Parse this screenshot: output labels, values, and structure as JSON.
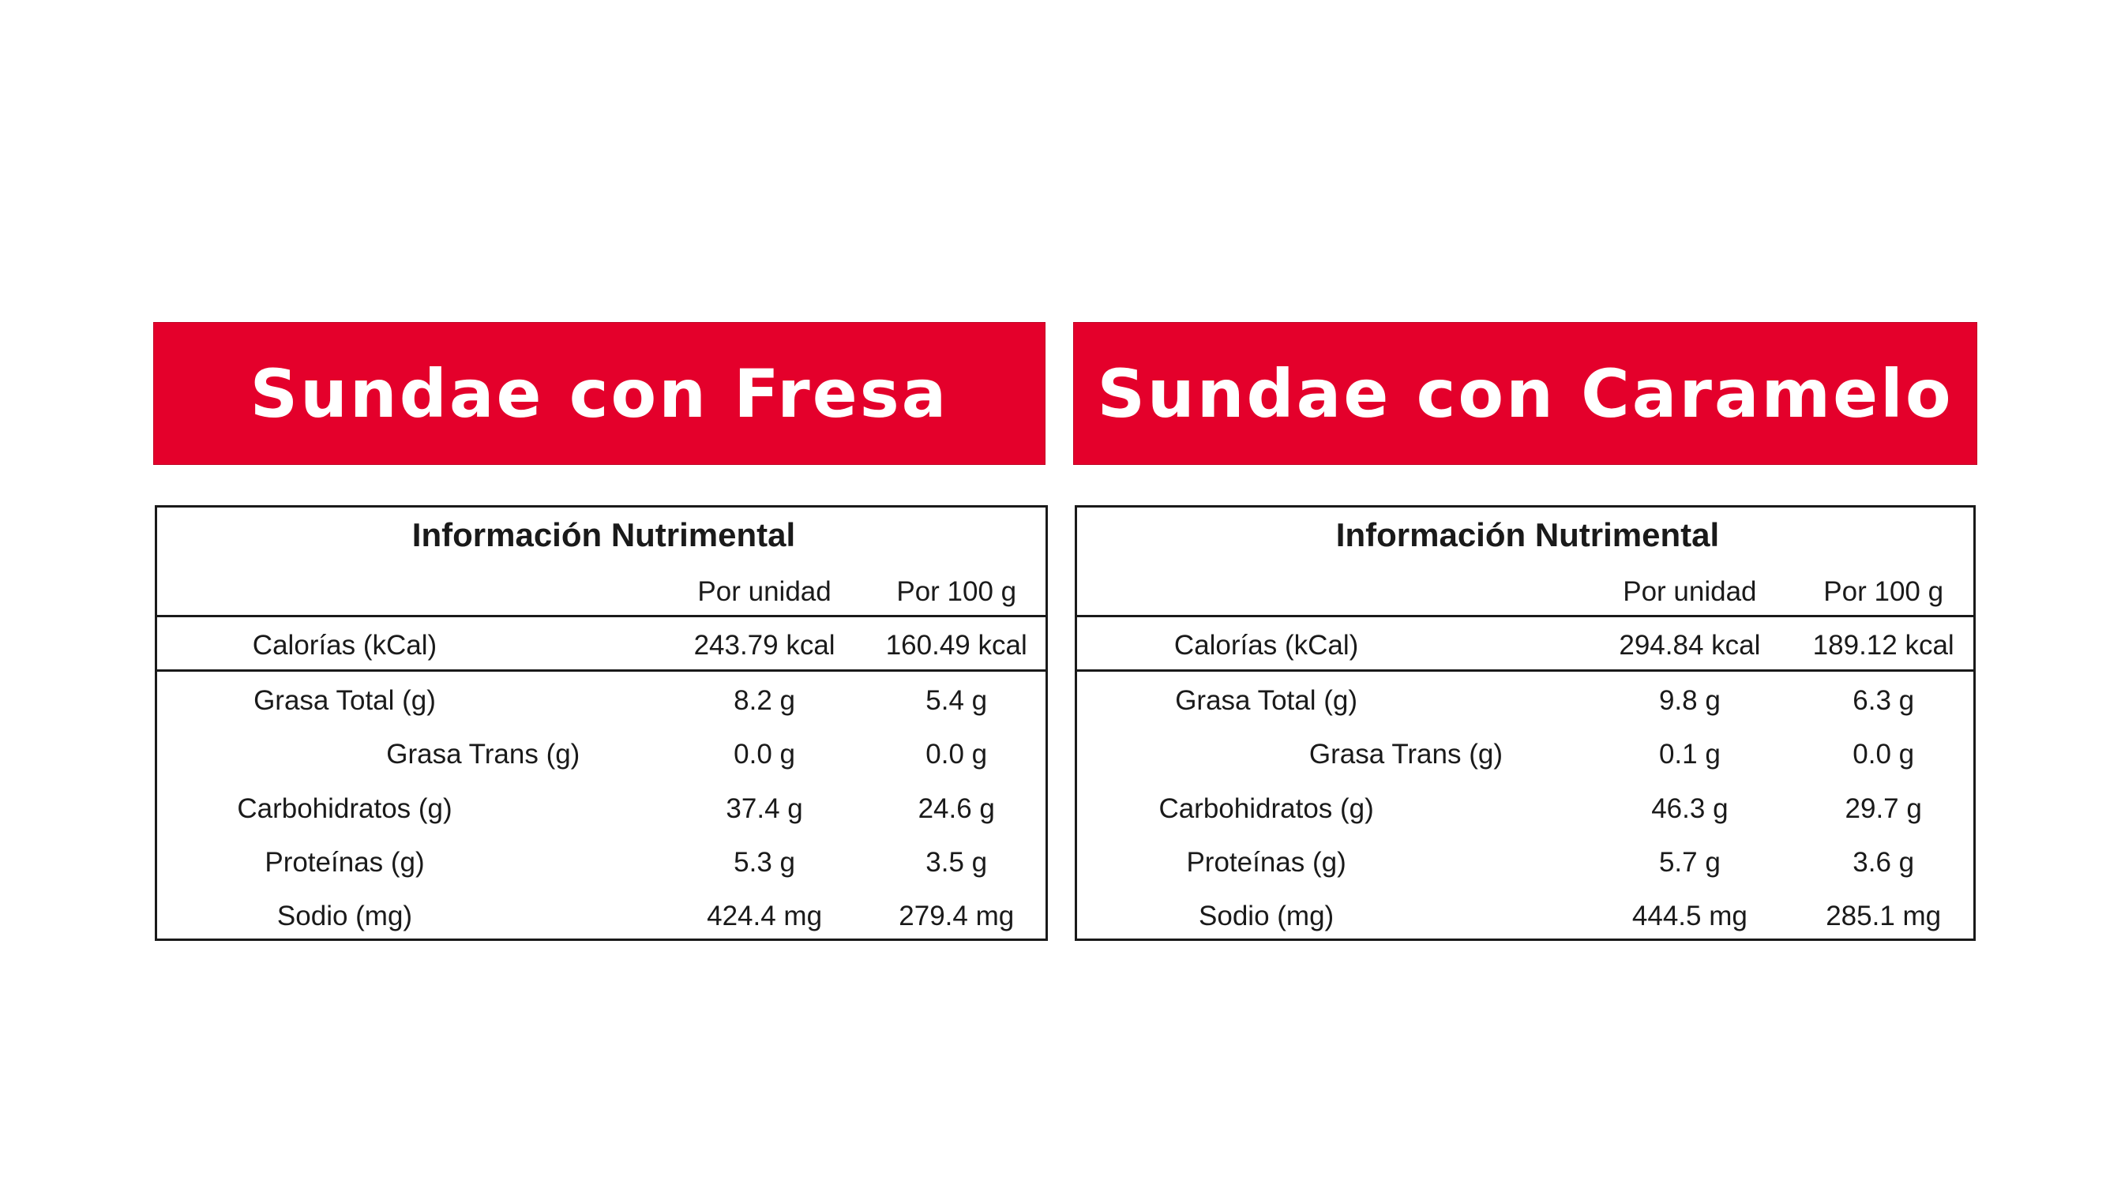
{
  "products": [
    {
      "title": "Sundae con Fresa",
      "table": {
        "heading": "Información Nutrimental",
        "columns": [
          "Por unidad",
          "Por 100 g"
        ],
        "rows": [
          {
            "label": "Calorías (kCal)",
            "values": [
              "243.79 kcal",
              "160.49 kcal"
            ]
          },
          {
            "label": "Grasa Total (g)",
            "values": [
              "8.2 g",
              "5.4 g"
            ]
          },
          {
            "label": "Grasa Trans (g)",
            "values": [
              "0.0 g",
              "0.0 g"
            ]
          },
          {
            "label": "Carbohidratos (g)",
            "values": [
              "37.4 g",
              "24.6 g"
            ]
          },
          {
            "label": "Proteínas (g)",
            "values": [
              "5.3 g",
              "3.5 g"
            ]
          },
          {
            "label": "Sodio (mg)",
            "values": [
              "424.4 mg",
              "279.4 mg"
            ]
          }
        ]
      }
    },
    {
      "title": "Sundae con Caramelo",
      "table": {
        "heading": "Información Nutrimental",
        "columns": [
          "Por unidad",
          "Por 100 g"
        ],
        "rows": [
          {
            "label": "Calorías (kCal)",
            "values": [
              "294.84 kcal",
              "189.12 kcal"
            ]
          },
          {
            "label": "Grasa Total (g)",
            "values": [
              "9.8 g",
              "6.3 g"
            ]
          },
          {
            "label": "Grasa Trans (g)",
            "values": [
              "0.1 g",
              "0.0 g"
            ]
          },
          {
            "label": "Carbohidratos (g)",
            "values": [
              "46.3 g",
              "29.7 g"
            ]
          },
          {
            "label": "Proteínas (g)",
            "values": [
              "5.7 g",
              "3.6 g"
            ]
          },
          {
            "label": "Sodio (mg)",
            "values": [
              "444.5 mg",
              "285.1 mg"
            ]
          }
        ]
      }
    }
  ]
}
